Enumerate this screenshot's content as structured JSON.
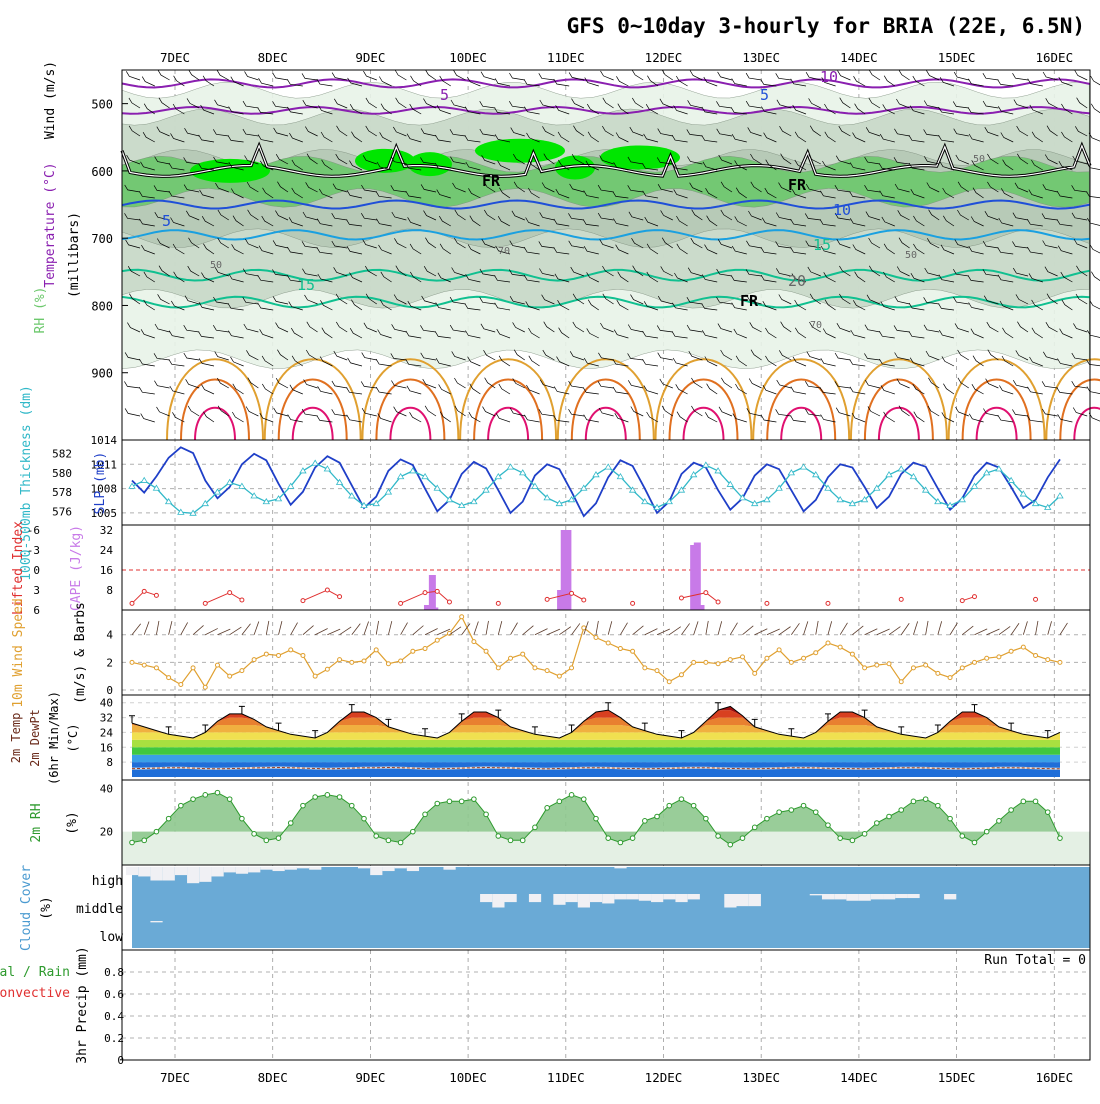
{
  "title": "GFS 0~10day 3-hourly for BRIA (22E, 6.5N)",
  "dates": [
    "7DEC",
    "8DEC",
    "9DEC",
    "10DEC",
    "11DEC",
    "12DEC",
    "13DEC",
    "14DEC",
    "15DEC",
    "16DEC"
  ],
  "colors": {
    "rh": [
      "#e8f3e8",
      "#c8d8c8",
      "#6cc86c",
      "#00e600"
    ],
    "temp_iso": [
      "#8a1fb0",
      "#1f4fd8",
      "#1aa0e0",
      "#10c090",
      "#e0a030",
      "#e07020",
      "#e01070"
    ],
    "slp": "#1f3fc8",
    "thickness": "#30b8c8",
    "cape": "#c87ae8",
    "lifted": "#e03030",
    "wind10": "#e0a030",
    "rh2m_fill": "#8ec88e",
    "rh2m_line": "#2e9a2e",
    "cloud_fill": "#6aaad6",
    "cloud_clear": "#f0f0f4"
  },
  "chart_data": [
    {
      "type": "area",
      "panel": "upper-air",
      "ylabels": [
        "Wind (m/s)",
        "Temperature (°C)",
        "RH (%)",
        "(millibars)"
      ],
      "ylim": [
        1000,
        450
      ],
      "yticks": [
        500,
        600,
        700,
        800,
        900
      ],
      "contour_labels": [
        "5",
        "10",
        "5",
        "5",
        "10",
        "15",
        "15",
        "20",
        "FR",
        "FR",
        "FR",
        "50",
        "50",
        "50",
        "70",
        "70"
      ],
      "iso_temperature_c": [
        -10,
        -5,
        0,
        5,
        10,
        15,
        20
      ],
      "freezing_level_mb": 600
    },
    {
      "type": "line",
      "panel": "slp-thickness",
      "ylabels": [
        "SLP (mb)",
        "1000-500mb Thickness (dm)"
      ],
      "slp_ticks": [
        1005,
        1008,
        1011,
        1014
      ],
      "thickness_ticks": [
        576,
        578,
        580,
        582
      ],
      "series": [
        {
          "name": "SLP (mb)",
          "values": [
            1009.0,
            1007.5,
            1009.5,
            1011.8,
            1013.1,
            1012.4,
            1009.0,
            1006.8,
            1008.2,
            1011.0,
            1012.3,
            1011.5,
            1008.6,
            1006.0,
            1007.6,
            1010.6,
            1012.0,
            1011.2,
            1008.4,
            1005.6,
            1007.0,
            1010.2,
            1011.6,
            1010.9,
            1008.0,
            1005.2,
            1006.6,
            1009.8,
            1011.3,
            1010.5,
            1007.8,
            1005.0,
            1006.4,
            1009.6,
            1011.0,
            1010.4,
            1007.6,
            1004.6,
            1006.2,
            1009.4,
            1011.5,
            1010.8,
            1008.0,
            1005.0,
            1006.4,
            1009.8,
            1011.2,
            1010.6,
            1007.8,
            1005.4,
            1006.8,
            1009.6,
            1011.0,
            1010.4,
            1007.8,
            1005.2,
            1006.6,
            1009.4,
            1011.0,
            1010.6,
            1008.2,
            1005.6,
            1007.0,
            1009.8,
            1011.2,
            1010.7,
            1008.0,
            1005.4,
            1006.8,
            1009.6,
            1011.2,
            1010.6,
            1008.2,
            1005.6,
            1006.6,
            1009.4,
            1011.6
          ]
        },
        {
          "name": "1000-500mb Thickness (dm)",
          "values": [
            578.6,
            579.2,
            578.4,
            577.0,
            575.9,
            575.8,
            576.8,
            578.0,
            579.0,
            578.6,
            577.6,
            577.0,
            577.3,
            578.6,
            580.2,
            581.0,
            580.4,
            579.0,
            577.6,
            576.6,
            576.8,
            578.0,
            579.6,
            580.2,
            579.6,
            578.4,
            577.2,
            576.6,
            577.0,
            578.2,
            579.6,
            580.6,
            580.0,
            578.6,
            577.4,
            576.8,
            577.2,
            578.4,
            579.8,
            580.6,
            579.6,
            578.2,
            577.0,
            576.4,
            577.0,
            578.2,
            579.8,
            580.8,
            580.2,
            578.8,
            577.4,
            576.8,
            577.2,
            578.4,
            580.0,
            580.6,
            579.8,
            578.4,
            577.2,
            576.8,
            577.2,
            578.4,
            579.8,
            580.4,
            579.6,
            578.2,
            577.0,
            576.6,
            577.2,
            578.6,
            580.0,
            580.4,
            579.2,
            577.8,
            576.8,
            576.4,
            577.6
          ]
        }
      ]
    },
    {
      "type": "bar",
      "panel": "cape-lifted",
      "ylabels": [
        "Lifted Index",
        "CAPE (J/kg)"
      ],
      "cape_ticks": [
        8,
        16,
        24,
        32
      ],
      "li_ticks": [
        "-6",
        "-3",
        "0",
        "3",
        "6"
      ],
      "series": [
        {
          "name": "CAPE (J/kg)",
          "points": [
            [
              24.2,
              2
            ],
            [
              24.6,
              14
            ],
            [
              24.8,
              1
            ],
            [
              35.1,
              8
            ],
            [
              35.4,
              32
            ],
            [
              35.7,
              32
            ],
            [
              46.0,
              26
            ],
            [
              46.3,
              27
            ],
            [
              46.6,
              2
            ]
          ]
        },
        {
          "name": "Lifted Index",
          "points": [
            [
              0,
              5.0
            ],
            [
              1,
              3.2
            ],
            [
              2,
              3.8
            ],
            [
              6,
              5.0
            ],
            [
              8,
              3.4
            ],
            [
              9,
              4.5
            ],
            [
              14,
              4.6
            ],
            [
              16,
              3.0
            ],
            [
              17,
              4.0
            ],
            [
              22,
              5.0
            ],
            [
              24,
              3.4
            ],
            [
              25,
              3.2
            ],
            [
              26,
              4.8
            ],
            [
              30,
              5.0
            ],
            [
              34,
              4.4
            ],
            [
              36,
              3.5
            ],
            [
              37,
              4.5
            ],
            [
              41,
              5.0
            ],
            [
              45,
              4.2
            ],
            [
              47,
              3.4
            ],
            [
              48,
              4.8
            ],
            [
              52,
              5.0
            ],
            [
              57,
              5.0
            ],
            [
              63,
              4.4
            ],
            [
              68,
              4.6
            ],
            [
              69,
              4.0
            ],
            [
              74,
              4.4
            ]
          ]
        }
      ]
    },
    {
      "type": "line",
      "panel": "wind10m",
      "ylabels": [
        "10m Wind Speed",
        "(m/s) & Barbs"
      ],
      "yticks": [
        0,
        2,
        4
      ],
      "series": [
        {
          "name": "10m Wind Speed",
          "values": [
            2.0,
            1.8,
            1.6,
            0.9,
            0.4,
            1.6,
            0.2,
            1.8,
            1.0,
            1.4,
            2.2,
            2.6,
            2.5,
            2.9,
            2.5,
            1.0,
            1.5,
            2.2,
            2.0,
            2.1,
            2.9,
            1.9,
            2.1,
            2.8,
            3.0,
            3.6,
            4.1,
            5.3,
            3.5,
            2.8,
            1.6,
            2.3,
            2.6,
            1.6,
            1.4,
            1.0,
            1.6,
            4.5,
            3.8,
            3.4,
            3.0,
            2.8,
            1.6,
            1.4,
            0.6,
            1.1,
            2.0,
            2.0,
            1.9,
            2.2,
            2.4,
            1.2,
            2.3,
            2.9,
            2.0,
            2.3,
            2.7,
            3.4,
            3.1,
            2.6,
            1.6,
            1.8,
            1.9,
            0.6,
            1.6,
            1.8,
            1.2,
            0.9,
            1.6,
            2.0,
            2.3,
            2.4,
            2.8,
            3.1,
            2.5,
            2.2,
            2.0
          ]
        }
      ]
    },
    {
      "type": "area",
      "panel": "temp2m",
      "ylabels": [
        "2m Temp",
        "2m DewPt",
        "(6hr Min/Max)",
        "(°C)"
      ],
      "yticks": [
        8,
        16,
        24,
        32,
        40
      ],
      "series": [
        {
          "name": "2m Temp",
          "values": [
            29,
            27,
            25,
            23,
            22,
            21,
            24,
            30,
            34,
            34,
            31,
            27,
            25,
            23,
            22,
            21,
            24,
            30,
            35,
            35,
            32,
            27,
            25,
            23,
            22,
            21,
            24,
            30,
            35,
            35,
            32,
            27,
            25,
            23,
            22,
            21,
            24,
            30,
            35,
            36,
            32,
            27,
            25,
            23,
            22,
            21,
            24,
            30,
            36,
            38,
            33,
            27,
            25,
            23,
            22,
            21,
            24,
            30,
            35,
            35,
            32,
            27,
            25,
            23,
            22,
            21,
            24,
            30,
            35,
            35,
            32,
            27,
            25,
            23,
            22,
            21,
            24
          ]
        },
        {
          "name": "2m DewPt",
          "values": [
            4.5,
            4.6,
            4.8,
            5.0,
            5.0,
            4.8,
            4.5,
            4.4,
            4.5,
            4.7,
            4.9,
            5.0,
            5.1,
            5.0,
            4.8,
            4.6,
            4.4,
            4.6,
            4.8,
            5.0,
            5.0,
            5.1,
            5.0,
            4.8,
            4.5,
            4.4,
            4.6,
            4.8,
            5.0,
            5.1,
            5.0,
            4.9,
            4.7,
            4.5,
            4.4,
            4.6,
            4.8,
            5.0,
            5.0,
            4.9,
            4.7,
            4.6,
            4.4,
            4.5,
            4.7,
            4.9,
            5.0,
            5.0,
            4.8,
            4.6,
            4.5,
            4.4,
            4.6,
            4.8,
            5.0,
            5.0,
            4.9,
            4.7,
            4.6,
            4.5,
            4.4,
            4.6,
            4.8,
            5.0,
            5.0,
            4.9,
            4.7,
            4.5,
            4.4,
            4.6,
            4.8,
            5.0,
            5.0,
            4.9,
            4.7,
            4.5,
            4.4
          ]
        }
      ]
    },
    {
      "type": "area",
      "panel": "rh2m",
      "ylabels": [
        "2m RH",
        "(%)"
      ],
      "yticks": [
        20,
        40
      ],
      "series": [
        {
          "name": "2m RH",
          "values": [
            15,
            16,
            20,
            26,
            32,
            35,
            37,
            38,
            35,
            26,
            19,
            16,
            17,
            24,
            32,
            36,
            37,
            36,
            32,
            26,
            18,
            16,
            15,
            20,
            28,
            33,
            34,
            34,
            35,
            28,
            18,
            16,
            16,
            22,
            31,
            34,
            37,
            35,
            26,
            17,
            15,
            17,
            25,
            27,
            32,
            35,
            32,
            26,
            18,
            14,
            17,
            22,
            26,
            29,
            30,
            32,
            29,
            23,
            17,
            16,
            19,
            24,
            27,
            30,
            34,
            35,
            32,
            26,
            18,
            15,
            20,
            25,
            30,
            34,
            34,
            29,
            17
          ]
        }
      ]
    },
    {
      "type": "heatmap",
      "panel": "cloud",
      "ylabels": [
        "Cloud Cover",
        "(%)"
      ],
      "levels": [
        "high",
        "middle",
        "low"
      ],
      "series": [
        {
          "name": "high",
          "values": [
            0.3,
            0.35,
            0.5,
            0.5,
            0.3,
            0.6,
            0.55,
            0.35,
            0.2,
            0.25,
            0.2,
            0.1,
            0.15,
            0.1,
            0.05,
            0.1,
            0.0,
            0.0,
            0.0,
            0.05,
            0.3,
            0.15,
            0.05,
            0.15,
            0.0,
            0.0,
            0.1,
            0.0,
            0.0,
            0.0,
            0.0,
            0.0,
            0.0,
            0.0,
            0.0,
            0.0,
            0.0,
            0.0,
            0.0,
            0.0,
            0.05,
            0.0,
            0.0,
            0.0,
            0.0,
            0.0,
            0.0,
            0.0,
            0.0,
            0.0,
            0.0,
            0.0,
            0.0,
            0.0,
            0.0,
            0.0,
            0.0,
            0.0,
            0.0,
            0.0,
            0.0,
            0.0,
            0.0,
            0.0,
            0.0,
            0.0,
            0.0,
            0.0,
            0.0,
            0.0,
            0.0,
            0.0,
            0.0,
            0.0,
            0.0,
            0.0,
            0.0
          ]
        },
        {
          "name": "middle",
          "values": [
            0.0,
            0.0,
            0.0,
            0.0,
            0.0,
            0.0,
            0.0,
            0.0,
            0.0,
            0.0,
            0.0,
            0.0,
            0.0,
            0.0,
            0.0,
            0.0,
            0.0,
            0.0,
            0.0,
            0.0,
            0.0,
            0.0,
            0.0,
            0.0,
            0.0,
            0.0,
            0.0,
            0.0,
            0.0,
            0.3,
            0.5,
            0.3,
            0.0,
            0.3,
            0.0,
            0.4,
            0.3,
            0.5,
            0.3,
            0.35,
            0.2,
            0.2,
            0.25,
            0.3,
            0.2,
            0.3,
            0.2,
            0.0,
            0.0,
            0.5,
            0.45,
            0.45,
            0.0,
            0.0,
            0.0,
            0.0,
            0.05,
            0.2,
            0.2,
            0.25,
            0.25,
            0.2,
            0.2,
            0.15,
            0.15,
            0.0,
            0.0,
            0.2,
            0.0,
            0.0,
            0.0,
            0.0,
            0.0,
            0.0,
            0.0,
            0.0,
            0.0
          ]
        },
        {
          "name": "low",
          "values": [
            0.0,
            0.0,
            0.05,
            0.0,
            0.0,
            0.0,
            0.0,
            0.0,
            0.0,
            0.0,
            0.0,
            0.0,
            0.0,
            0.0,
            0.0,
            0.0,
            0.0,
            0.0,
            0.0,
            0.0,
            0.0,
            0.0,
            0.0,
            0.0,
            0.0,
            0.0,
            0.0,
            0.0,
            0.0,
            0.0,
            0.0,
            0.0,
            0.0,
            0.0,
            0.0,
            0.0,
            0.0,
            0.0,
            0.0,
            0.0,
            0.0,
            0.0,
            0.0,
            0.0,
            0.0,
            0.0,
            0.0,
            0.0,
            0.0,
            0.0,
            0.0,
            0.0,
            0.0,
            0.0,
            0.0,
            0.0,
            0.0,
            0.0,
            0.0,
            0.0,
            0.0,
            0.0,
            0.0,
            0.0,
            0.0,
            0.0,
            0.0,
            0.0,
            0.0,
            0.0,
            0.0,
            0.0,
            0.0,
            0.0,
            0.0,
            0.0,
            0.0
          ]
        }
      ]
    },
    {
      "type": "bar",
      "panel": "precip",
      "ylabels": [
        "3hr Precip (mm)",
        "Total / Rain",
        "Convective"
      ],
      "yticks": [
        "0",
        "0.2",
        "0.4",
        "0.6",
        "0.8"
      ],
      "ylim": [
        0,
        1
      ],
      "run_total": "Run Total = 0",
      "series": [
        {
          "name": "3hr Precip",
          "values": []
        }
      ]
    }
  ]
}
